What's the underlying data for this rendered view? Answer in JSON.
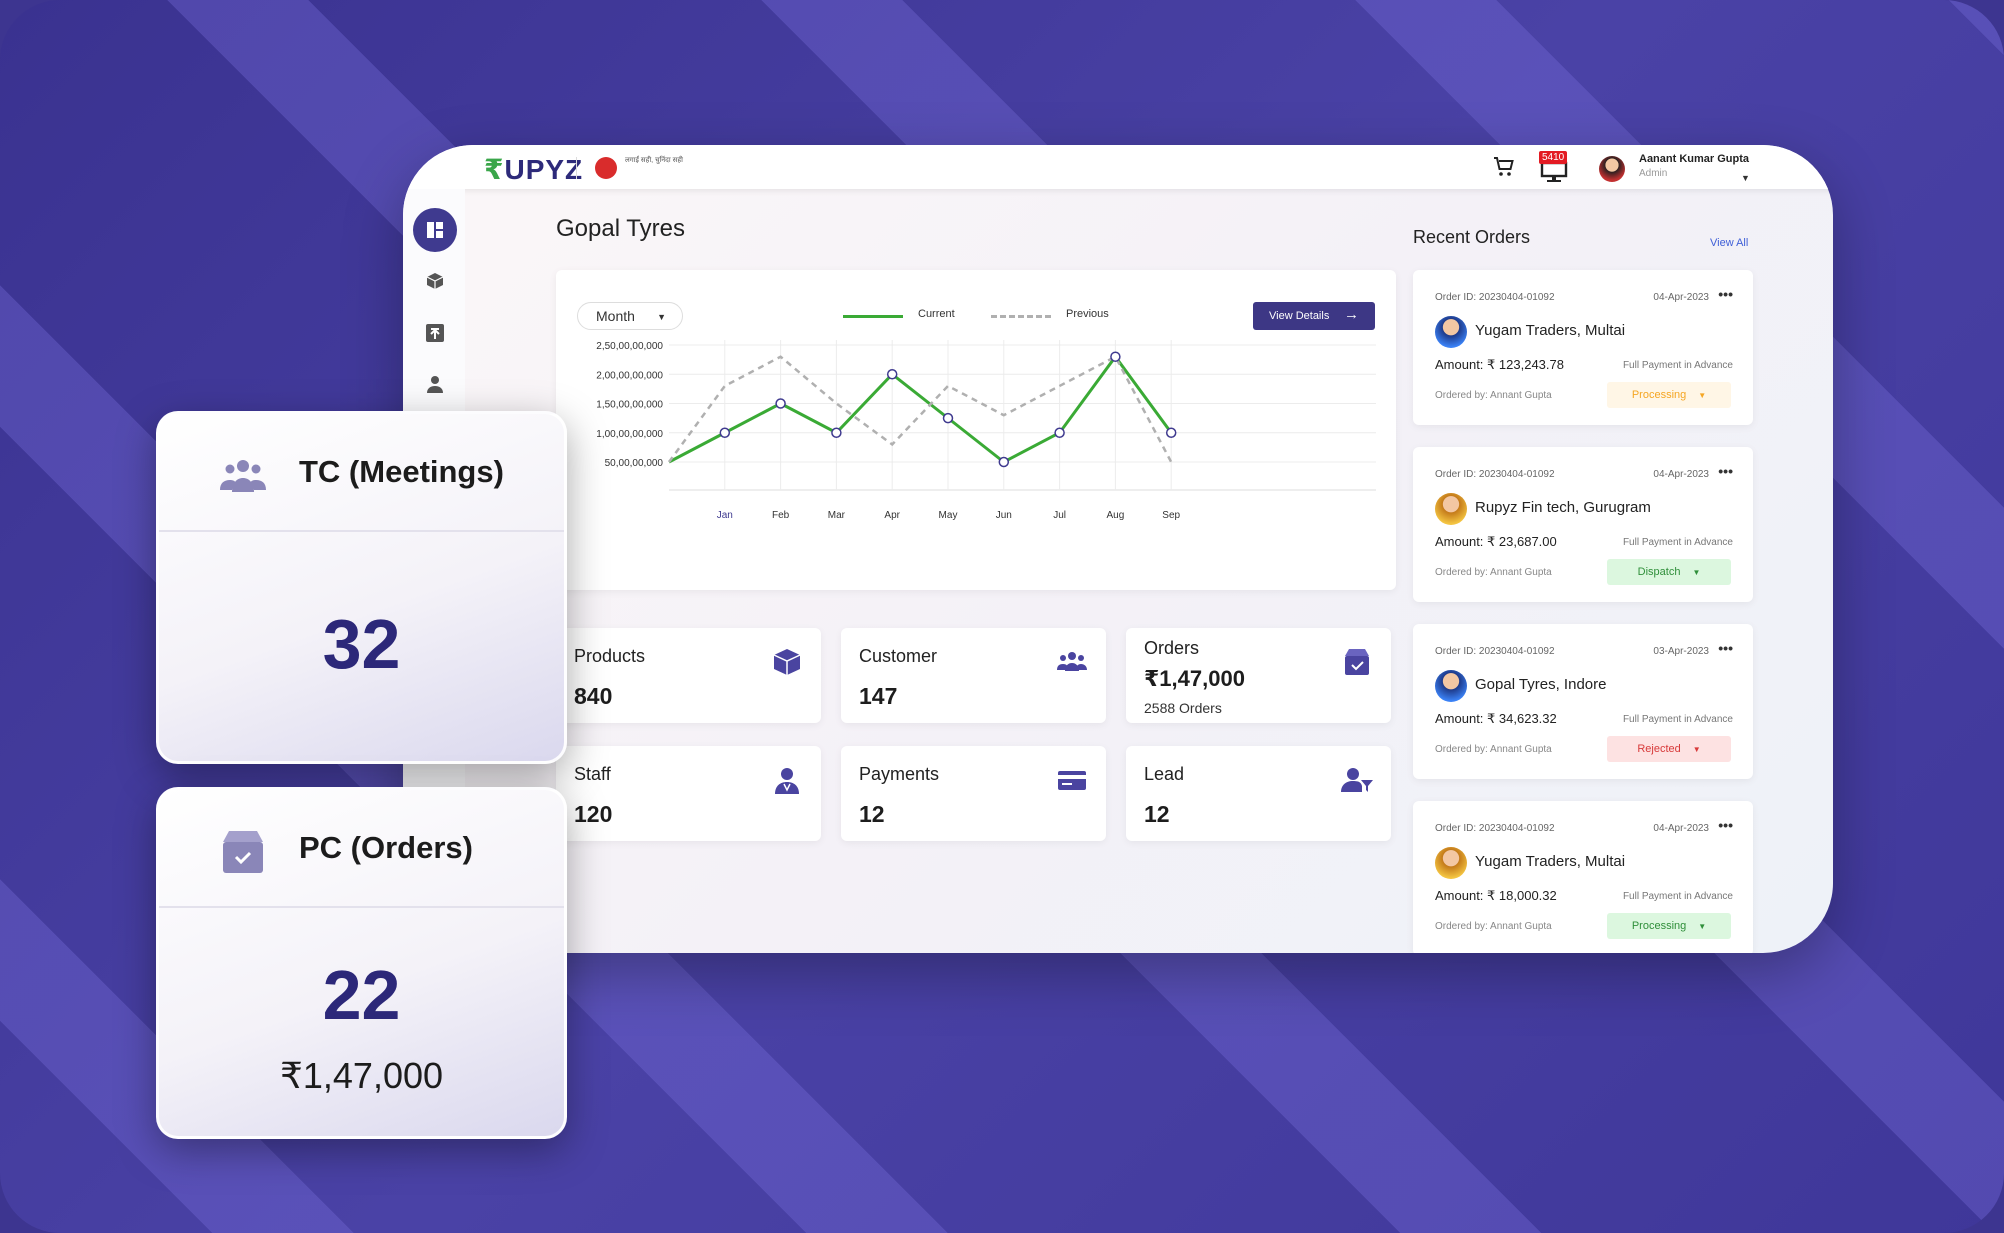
{
  "topbar": {
    "logo": "UPYZ",
    "logo_prefix": "₹",
    "sublogo_text": "लगाईं सही, चुनिंदा सही",
    "notif_count": "5410",
    "user_name": "Aanant Kumar Gupta",
    "user_role": "Admin"
  },
  "page_title": "Gopal Tyres",
  "chart_card": {
    "period_select": "Month",
    "legend_current": "Current",
    "legend_previous": "Previous",
    "view_details": "View Details"
  },
  "chart_data": {
    "type": "line",
    "categories": [
      "Jan",
      "Feb",
      "Mar",
      "Apr",
      "May",
      "Jun",
      "Jul",
      "Aug",
      "Sep"
    ],
    "y_tick_labels": [
      "2,50,00,00,000",
      "2,00,00,00,000",
      "1,50,00,00,000",
      "1,00,00,00,000",
      "50,00,00,000"
    ],
    "y_ticks": [
      250000000,
      200000000,
      150000000,
      100000000,
      50000000
    ],
    "ylim": [
      0,
      250000000
    ],
    "series": [
      {
        "name": "Current",
        "color": "#3aaa35",
        "style": "solid",
        "start": 50000000,
        "values": [
          100000000,
          150000000,
          100000000,
          200000000,
          125000000,
          50000000,
          100000000,
          230000000,
          100000000
        ]
      },
      {
        "name": "Previous",
        "color": "#b0b0b0",
        "style": "dashed",
        "start": 50000000,
        "values": [
          180000000,
          230000000,
          150000000,
          80000000,
          180000000,
          130000000,
          180000000,
          230000000,
          50000000
        ]
      }
    ],
    "grid": true
  },
  "stats": [
    {
      "label": "Products",
      "value": "840",
      "icon": "box-icon"
    },
    {
      "label": "Customer",
      "value": "147",
      "icon": "group-icon"
    },
    {
      "label": "Orders",
      "value": "₹1,47,000",
      "sub": "2588 Orders",
      "icon": "order-box-icon"
    },
    {
      "label": "Staff",
      "value": "120",
      "icon": "staff-icon"
    },
    {
      "label": "Payments",
      "value": "12",
      "icon": "card-icon"
    },
    {
      "label": "Lead",
      "value": "12",
      "icon": "lead-icon"
    }
  ],
  "recent_orders": {
    "title": "Recent Orders",
    "view_all": "View All",
    "items": [
      {
        "id": "Order ID: 20230404-01092",
        "date": "04-Apr-2023",
        "name": "Yugam Traders, Multai",
        "amount": "Amount: ₹ 123,243.78",
        "payment": "Full Payment in Advance",
        "by": "Ordered by: Annant Gupta",
        "status": "Processing",
        "status_color": "#f5a623",
        "status_bg": "#fff6e6"
      },
      {
        "id": "Order ID: 20230404-01092",
        "date": "04-Apr-2023",
        "name": "Rupyz Fin tech, Gurugram",
        "amount": "Amount: ₹ 23,687.00",
        "payment": "Full Payment in Advance",
        "by": "Ordered by: Annant Gupta",
        "status": "Dispatch",
        "status_color": "#2f8f3a",
        "status_bg": "#dcf7df"
      },
      {
        "id": "Order ID: 20230404-01092",
        "date": "03-Apr-2023",
        "name": "Gopal Tyres, Indore",
        "amount": "Amount: ₹ 34,623.32",
        "payment": "Full Payment in Advance",
        "by": "Ordered by: Annant Gupta",
        "status": "Rejected",
        "status_color": "#d83a3a",
        "status_bg": "#fde2e2"
      },
      {
        "id": "Order ID: 20230404-01092",
        "date": "04-Apr-2023",
        "name": "Yugam Traders, Multai",
        "amount": "Amount: ₹ 18,000.32",
        "payment": "Full Payment in Advance",
        "by": "Ordered by: Annant Gupta",
        "status": "Processing",
        "status_color": "#2f8f3a",
        "status_bg": "#dcf7df"
      }
    ]
  },
  "float_tc": {
    "title": "TC (Meetings)",
    "value": "32"
  },
  "float_pc": {
    "title": "PC (Orders)",
    "value": "22",
    "amount": "₹1,47,000"
  },
  "colors": {
    "brand": "#3d3785",
    "background": "#3d3590",
    "accent_green": "#3aaa35"
  }
}
